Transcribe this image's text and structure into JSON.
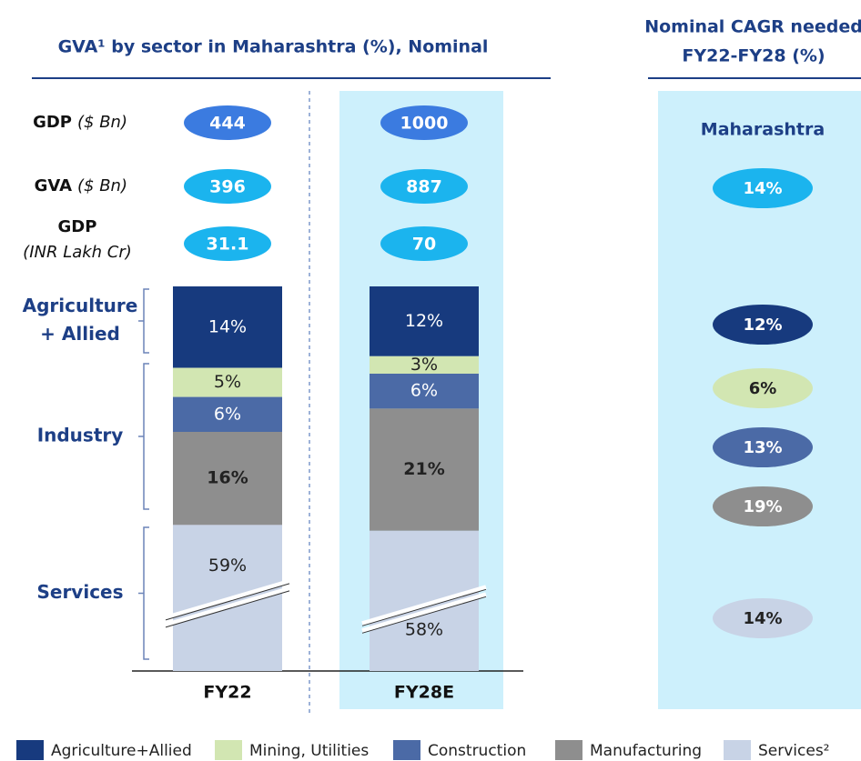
{
  "chart_data": {
    "type": "bar",
    "stacked": true,
    "title": "GVA¹ by sector in Maharashtra (%), Nominal",
    "categories": [
      "FY22",
      "FY28E"
    ],
    "series": [
      {
        "name": "Agriculture+Allied",
        "color": "#173a7e",
        "values": [
          14,
          12
        ],
        "value_labels": [
          "14%",
          "12%"
        ]
      },
      {
        "name": "Mining, Utilities",
        "color": "#d2e6b2",
        "values": [
          5,
          3
        ],
        "value_labels": [
          "5%",
          "3%"
        ]
      },
      {
        "name": "Construction",
        "color": "#4b6aa6",
        "values": [
          6,
          6
        ],
        "value_labels": [
          "6%",
          "6%"
        ]
      },
      {
        "name": "Manufacturing",
        "color": "#8e8e8e",
        "values": [
          16,
          21
        ],
        "value_labels": [
          "16%",
          "21%"
        ]
      },
      {
        "name": "Services²",
        "color": "#c8d3e6",
        "values": [
          59,
          58
        ],
        "value_labels": [
          "59%",
          "58%"
        ]
      }
    ],
    "rows": [
      {
        "label": "GDP",
        "unit": "($ Bn)",
        "color": "#3b7be0",
        "values": [
          444,
          1000
        ]
      },
      {
        "label": "GVA",
        "unit": "($ Bn)",
        "color": "#1bb4ee",
        "values": [
          396,
          887
        ]
      },
      {
        "label": "GDP",
        "unit": "(INR Lakh Cr)",
        "color": "#1bb4ee",
        "values": [
          31.1,
          70
        ]
      }
    ],
    "groups": [
      {
        "lines": [
          "Agriculture",
          "+ Allied"
        ]
      },
      {
        "lines": [
          "Industry"
        ]
      },
      {
        "lines": [
          "Services"
        ]
      }
    ],
    "cagr": {
      "title_lines": [
        "Nominal CAGR needed",
        "FY22-FY28 (%)"
      ],
      "region": "Maharashtra",
      "values": [
        14,
        12,
        6,
        13,
        19,
        14
      ],
      "value_labels": [
        "14%",
        "12%",
        "6%",
        "13%",
        "19%",
        "14%"
      ],
      "colors": [
        "#1bb4ee",
        "#173a7e",
        "#d2e6b2",
        "#4b6aa6",
        "#8e8e8e",
        "#c8d3e6"
      ]
    }
  }
}
